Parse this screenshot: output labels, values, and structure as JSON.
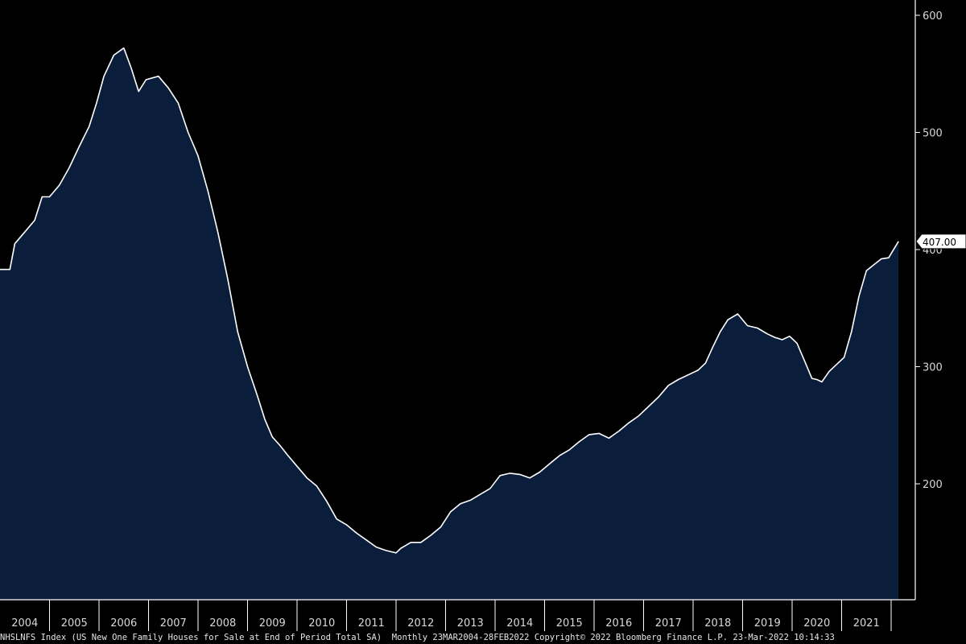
{
  "chart_data": {
    "type": "area",
    "ylim": [
      100,
      620
    ],
    "y_ticks": [
      200,
      300,
      400,
      500,
      600
    ],
    "year_labels": [
      "2004",
      "2005",
      "2006",
      "2007",
      "2008",
      "2009",
      "2010",
      "2011",
      "2012",
      "2013",
      "2014",
      "2015",
      "2016",
      "2017",
      "2018",
      "2019",
      "2020",
      "2021"
    ],
    "x_start": 2004.0,
    "x_end": 2022.2,
    "last_value_label": "407.00",
    "colors": {
      "background": "#000000",
      "area": "#0a1e3c",
      "line": "#ffffff",
      "axis": "#ffffff"
    },
    "series": [
      {
        "x": [
          2004.0,
          2004.2,
          2004.3,
          2004.5,
          2004.7,
          2004.85,
          2005.0,
          2005.2,
          2005.4,
          2005.6,
          2005.8,
          2005.95,
          2006.1,
          2006.3,
          2006.5,
          2006.65,
          2006.8,
          2006.95,
          2007.2,
          2007.4,
          2007.6,
          2007.8,
          2008.0,
          2008.2,
          2008.4,
          2008.6,
          2008.8,
          2009.0,
          2009.2,
          2009.35,
          2009.5,
          2009.65,
          2009.8,
          2010.0,
          2010.2,
          2010.4,
          2010.6,
          2010.8,
          2011.0,
          2011.2,
          2011.4,
          2011.6,
          2011.8,
          2012.0,
          2012.1,
          2012.3,
          2012.5,
          2012.7,
          2012.9,
          2013.1,
          2013.3,
          2013.5,
          2013.7,
          2013.9,
          2014.1,
          2014.3,
          2014.5,
          2014.7,
          2014.9,
          2015.1,
          2015.3,
          2015.5,
          2015.7,
          2015.9,
          2016.1,
          2016.3,
          2016.5,
          2016.7,
          2016.9,
          2017.1,
          2017.3,
          2017.5,
          2017.7,
          2017.9,
          2018.1,
          2018.25,
          2018.4,
          2018.55,
          2018.7,
          2018.9,
          2019.1,
          2019.3,
          2019.5,
          2019.65,
          2019.8,
          2019.95,
          2020.1,
          2020.25,
          2020.4,
          2020.5,
          2020.6,
          2020.75,
          2020.9,
          2021.05,
          2021.2,
          2021.35,
          2021.5,
          2021.65,
          2021.8,
          2021.95,
          2022.15
        ],
        "y": [
          383,
          383,
          405,
          415,
          425,
          445,
          445,
          455,
          470,
          488,
          505,
          525,
          548,
          566,
          572,
          555,
          535,
          545,
          548,
          538,
          525,
          500,
          480,
          450,
          415,
          375,
          330,
          300,
          275,
          255,
          240,
          233,
          225,
          215,
          205,
          198,
          185,
          170,
          165,
          158,
          152,
          146,
          143,
          141,
          145,
          150,
          150,
          156,
          163,
          176,
          183,
          186,
          191,
          196,
          207,
          209,
          208,
          205,
          210,
          217,
          224,
          229,
          236,
          242,
          243,
          239,
          245,
          252,
          258,
          266,
          274,
          284,
          289,
          293,
          297,
          303,
          317,
          330,
          340,
          345,
          335,
          333,
          328,
          325,
          323,
          326,
          320,
          305,
          290,
          289,
          287,
          296,
          302,
          308,
          330,
          360,
          382,
          387,
          392,
          393,
          407
        ]
      }
    ]
  },
  "footer": {
    "ticker": "NHSLNFS Index",
    "description": "(US New One Family Houses for Sale at End of Period Total SA)",
    "frequency": "Monthly",
    "date_range": "23MAR2004-28FEB2022",
    "copyright": "Copyright© 2022 Bloomberg Finance L.P.",
    "timestamp": "23-Mar-2022 10:14:33"
  }
}
